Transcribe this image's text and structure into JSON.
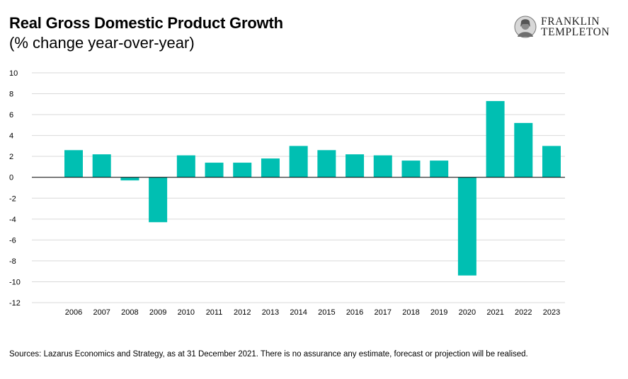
{
  "header": {
    "title": "Real Gross Domestic Product Growth",
    "subtitle": "(% change year-over-year)"
  },
  "logo": {
    "line1": "FRANKLIN",
    "line2": "TEMPLETON",
    "icon": "benjamin-franklin-portrait-icon"
  },
  "footer": {
    "source": "Sources: Lazarus Economics and Strategy, as at 31 December 2021. There is no assurance any estimate, forecast or projection will be realised."
  },
  "colors": {
    "bar": "#00BFB2",
    "grid": "#D9D9D9",
    "axis": "#000000"
  },
  "chart_data": {
    "type": "bar",
    "title": "Real Gross Domestic Product Growth",
    "subtitle": "(% change year-over-year)",
    "xlabel": "",
    "ylabel": "",
    "categories": [
      "2006",
      "2007",
      "2008",
      "2009",
      "2010",
      "2011",
      "2012",
      "2013",
      "2014",
      "2015",
      "2016",
      "2017",
      "2018",
      "2019",
      "2020",
      "2021",
      "2022",
      "2023"
    ],
    "values": [
      2.6,
      2.2,
      -0.3,
      -4.3,
      2.1,
      1.4,
      1.4,
      1.8,
      3.0,
      2.6,
      2.2,
      2.1,
      1.6,
      1.6,
      -9.4,
      7.3,
      5.2,
      3.0
    ],
    "ylim": [
      -12,
      10
    ],
    "yticks": [
      10,
      8,
      6,
      4,
      2,
      0,
      -2,
      -4,
      -6,
      -8,
      -10,
      -12
    ],
    "grid": true,
    "legend": "none"
  }
}
